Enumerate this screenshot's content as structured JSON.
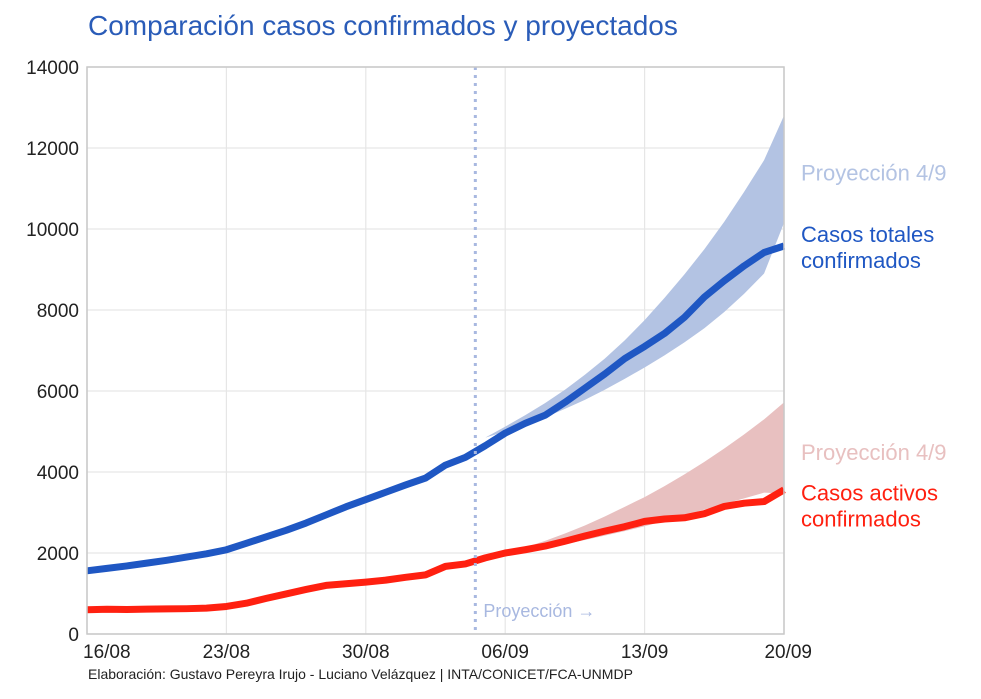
{
  "title": "Comparación casos confirmados y proyectados",
  "footer": "Elaboración: Gustavo Pereyra Irujo - Luciano Velázquez | INTA/CONICET/FCA-UNMDP",
  "colors": {
    "total": "#1f57c3",
    "total_band": "#b3c3e3",
    "active": "#ff2010",
    "active_band": "#e8c0c0",
    "projection_line": "#a8b8e0",
    "grid": "#e6e6e6",
    "axis": "#c8c8c8"
  },
  "chart_data": {
    "type": "line",
    "title": "Comparación casos confirmados y proyectados",
    "xlabel": "",
    "ylabel": "",
    "x_tick_labels": [
      "16/08",
      "23/08",
      "30/08",
      "06/09",
      "13/09",
      "20/09"
    ],
    "x_tick_days": [
      0,
      7,
      14,
      21,
      28,
      35
    ],
    "y_ticks": [
      0,
      2000,
      4000,
      6000,
      8000,
      10000,
      12000,
      14000
    ],
    "xlim": [
      0,
      35
    ],
    "ylim": [
      0,
      14000
    ],
    "grid": true,
    "projection_marker": {
      "day": 19.5,
      "label": "Proyección →"
    },
    "series": [
      {
        "name": "Casos totales confirmados",
        "label_lines": [
          "Casos totales",
          "confirmados"
        ],
        "x": [
          0,
          1,
          2,
          3,
          4,
          5,
          6,
          7,
          8,
          9,
          10,
          11,
          12,
          13,
          14,
          15,
          16,
          17,
          18,
          19,
          20,
          21,
          22,
          23,
          24,
          25,
          26,
          27,
          28,
          29,
          30,
          31,
          32,
          33,
          34,
          35
        ],
        "y": [
          1560,
          1620,
          1680,
          1750,
          1820,
          1900,
          1980,
          2080,
          2240,
          2400,
          2560,
          2740,
          2940,
          3140,
          3320,
          3500,
          3680,
          3850,
          4170,
          4360,
          4650,
          4960,
          5200,
          5400,
          5720,
          6070,
          6420,
          6800,
          7100,
          7420,
          7820,
          8320,
          8720,
          9090,
          9420,
          9580
        ]
      },
      {
        "name": "Casos activos confirmados",
        "label_lines": [
          "Casos activos",
          "confirmados"
        ],
        "x": [
          0,
          1,
          2,
          3,
          4,
          5,
          6,
          7,
          8,
          9,
          10,
          11,
          12,
          13,
          14,
          15,
          16,
          17,
          18,
          19,
          20,
          21,
          22,
          23,
          24,
          25,
          26,
          27,
          28,
          29,
          30,
          31,
          32,
          33,
          34,
          35
        ],
        "y": [
          600,
          610,
          605,
          615,
          620,
          625,
          640,
          680,
          760,
          880,
          990,
          1100,
          1200,
          1240,
          1280,
          1330,
          1400,
          1460,
          1670,
          1730,
          1880,
          2000,
          2080,
          2170,
          2290,
          2420,
          2540,
          2650,
          2780,
          2840,
          2870,
          2970,
          3150,
          3230,
          3270,
          3560
        ]
      }
    ],
    "projection_bands": [
      {
        "name": "Proyección 4/9",
        "x": [
          20,
          21,
          22,
          23,
          24,
          25,
          26,
          27,
          28,
          29,
          30,
          31,
          32,
          33,
          34,
          35
        ],
        "lower": [
          4850,
          5000,
          5180,
          5350,
          5560,
          5780,
          6030,
          6300,
          6580,
          6880,
          7200,
          7550,
          7950,
          8400,
          8900,
          10150
        ],
        "upper": [
          4850,
          5120,
          5400,
          5700,
          6030,
          6400,
          6800,
          7250,
          7750,
          8300,
          8880,
          9500,
          10180,
          10920,
          11700,
          12800
        ]
      },
      {
        "name": "Proyección 4/9",
        "x": [
          20,
          21,
          22,
          23,
          24,
          25,
          26,
          27,
          28,
          29,
          30,
          31,
          32,
          33,
          34,
          35
        ],
        "lower": [
          1880,
          1960,
          2040,
          2130,
          2220,
          2320,
          2430,
          2540,
          2660,
          2790,
          2930,
          3070,
          3210,
          3350,
          3490,
          3470
        ],
        "upper": [
          1880,
          2000,
          2140,
          2300,
          2480,
          2680,
          2900,
          3140,
          3380,
          3650,
          3940,
          4250,
          4580,
          4930,
          5300,
          5720
        ]
      }
    ],
    "end_labels": [
      {
        "text": "Proyección 4/9",
        "color": "#b3c3e3",
        "y_value": 11400
      },
      {
        "text": "Proyección 4/9",
        "color": "#e8c0c0",
        "y_value": 4500
      }
    ]
  }
}
